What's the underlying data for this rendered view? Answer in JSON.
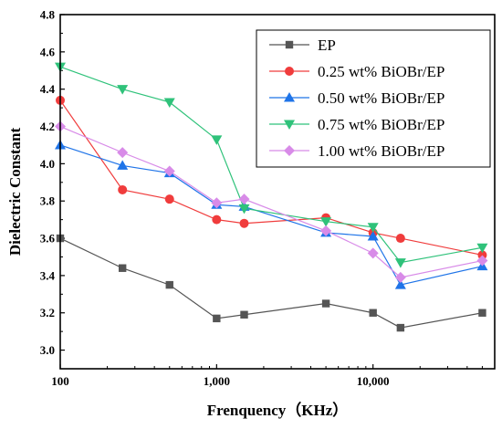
{
  "chart_data": {
    "type": "line",
    "xlabel": "Frenquency（KHz）",
    "ylabel": "Dielectric Constant",
    "x_scale": "log",
    "xlim": [
      100,
      60000
    ],
    "ylim": [
      2.9,
      4.8
    ],
    "x_ticks": [
      {
        "value": 100,
        "label": "100"
      },
      {
        "value": 1000,
        "label": "1,000"
      },
      {
        "value": 10000,
        "label": "10,000"
      }
    ],
    "y_ticks": [
      {
        "value": 3.0,
        "label": "3.0"
      },
      {
        "value": 3.2,
        "label": "3.2"
      },
      {
        "value": 3.4,
        "label": "3.4"
      },
      {
        "value": 3.6,
        "label": "3.6"
      },
      {
        "value": 3.8,
        "label": "3.8"
      },
      {
        "value": 4.0,
        "label": "4.0"
      },
      {
        "value": 4.2,
        "label": "4.2"
      },
      {
        "value": 4.4,
        "label": "4.4"
      },
      {
        "value": 4.6,
        "label": "4.6"
      },
      {
        "value": 4.8,
        "label": "4.8"
      }
    ],
    "x": [
      100,
      250,
      500,
      1000,
      1500,
      5000,
      10000,
      15000,
      50000
    ],
    "legend_position": "top-right",
    "series": [
      {
        "name": "EP",
        "color": "#555555",
        "marker": "square",
        "values": [
          3.6,
          3.44,
          3.35,
          3.17,
          3.19,
          3.25,
          3.2,
          3.12,
          3.2
        ]
      },
      {
        "name": "0.25 wt% BiOBr/EP",
        "color": "#f03c3c",
        "marker": "circle",
        "values": [
          4.34,
          3.86,
          3.81,
          3.7,
          3.68,
          3.71,
          3.63,
          3.6,
          3.51
        ]
      },
      {
        "name": "0.50 wt% BiOBr/EP",
        "color": "#1f74e8",
        "marker": "triangle-up",
        "values": [
          4.1,
          3.99,
          3.95,
          3.78,
          3.77,
          3.63,
          3.61,
          3.35,
          3.45
        ]
      },
      {
        "name": "0.75 wt% BiOBr/EP",
        "color": "#2fc27a",
        "marker": "triangle-down",
        "values": [
          4.52,
          4.4,
          4.33,
          4.13,
          3.76,
          3.69,
          3.66,
          3.47,
          3.55
        ]
      },
      {
        "name": "1.00 wt% BiOBr/EP",
        "color": "#d88be8",
        "marker": "diamond",
        "values": [
          4.2,
          4.06,
          3.96,
          3.79,
          3.81,
          3.64,
          3.52,
          3.39,
          3.48
        ]
      }
    ]
  }
}
